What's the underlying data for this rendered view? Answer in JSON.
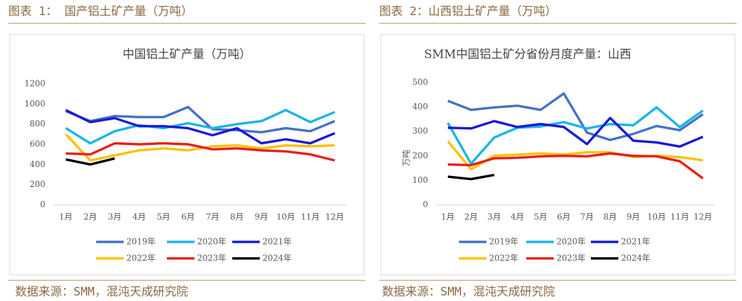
{
  "figures": [
    {
      "caption": "图表 1： 国产铝土矿产量（万吨）",
      "source": "数据来源：SMM，混沌天成研究院"
    },
    {
      "caption": "图表 2：山西铝土矿产量（万吨）",
      "source": "数据来源：SMM，混沌天成研究院"
    }
  ],
  "chart_data": [
    {
      "type": "line",
      "title": "中国铝土矿产量（万吨）",
      "categories": [
        "1月",
        "2月",
        "3月",
        "4月",
        "5月",
        "6月",
        "7月",
        "8月",
        "9月",
        "10月",
        "11月",
        "12月"
      ],
      "ylim": [
        0,
        1200
      ],
      "yticks": [
        0,
        200,
        400,
        600,
        800,
        1000,
        1200
      ],
      "grid": false,
      "legend": "bottom",
      "series": [
        {
          "name": "2019年",
          "color": "#4472c4",
          "values": [
            930,
            830,
            880,
            870,
            870,
            970,
            750,
            740,
            720,
            760,
            730,
            830
          ]
        },
        {
          "name": "2020年",
          "color": "#1ab4e8",
          "values": [
            760,
            610,
            730,
            790,
            760,
            810,
            760,
            800,
            830,
            940,
            820,
            920
          ]
        },
        {
          "name": "2021年",
          "color": "#1a1ad6",
          "values": [
            940,
            820,
            860,
            780,
            780,
            760,
            690,
            760,
            610,
            650,
            610,
            710
          ]
        },
        {
          "name": "2022年",
          "color": "#ffc000",
          "values": [
            700,
            440,
            490,
            540,
            560,
            540,
            580,
            590,
            560,
            590,
            580,
            590
          ]
        },
        {
          "name": "2023年",
          "color": "#e8201a",
          "values": [
            510,
            500,
            610,
            600,
            610,
            600,
            550,
            560,
            540,
            530,
            500,
            440
          ]
        },
        {
          "name": "2024年",
          "color": "#000000",
          "values": [
            450,
            400,
            460,
            null,
            null,
            null,
            null,
            null,
            null,
            null,
            null,
            null
          ]
        }
      ]
    },
    {
      "type": "line",
      "title": "SMM中国铝土矿分省份月度产量：山西",
      "y_label": "万吨",
      "categories": [
        "1月",
        "2月",
        "3月",
        "4月",
        "5月",
        "6月",
        "7月",
        "8月",
        "9月",
        "10月",
        "11月",
        "12月"
      ],
      "ylim": [
        0,
        500
      ],
      "yticks": [
        0,
        100,
        200,
        300,
        400,
        500
      ],
      "grid": false,
      "legend": "bottom",
      "series": [
        {
          "name": "2019年",
          "color": "#4472c4",
          "values": [
            425,
            388,
            398,
            405,
            388,
            455,
            295,
            265,
            290,
            322,
            305,
            370
          ]
        },
        {
          "name": "2020年",
          "color": "#1ab4e8",
          "values": [
            335,
            168,
            275,
            315,
            320,
            338,
            312,
            330,
            325,
            398,
            318,
            385
          ]
        },
        {
          "name": "2021年",
          "color": "#1a1ad6",
          "values": [
            315,
            312,
            342,
            318,
            330,
            318,
            248,
            355,
            262,
            255,
            238,
            278
          ]
        },
        {
          "name": "2022年",
          "color": "#ffc000",
          "values": [
            260,
            145,
            200,
            205,
            210,
            205,
            215,
            215,
            195,
            200,
            195,
            182
          ]
        },
        {
          "name": "2023年",
          "color": "#e8201a",
          "values": [
            165,
            162,
            190,
            192,
            198,
            200,
            198,
            210,
            200,
            198,
            178,
            108
          ]
        },
        {
          "name": "2024年",
          "color": "#000000",
          "values": [
            115,
            105,
            122,
            null,
            null,
            null,
            null,
            null,
            null,
            null,
            null,
            null
          ]
        }
      ]
    }
  ]
}
